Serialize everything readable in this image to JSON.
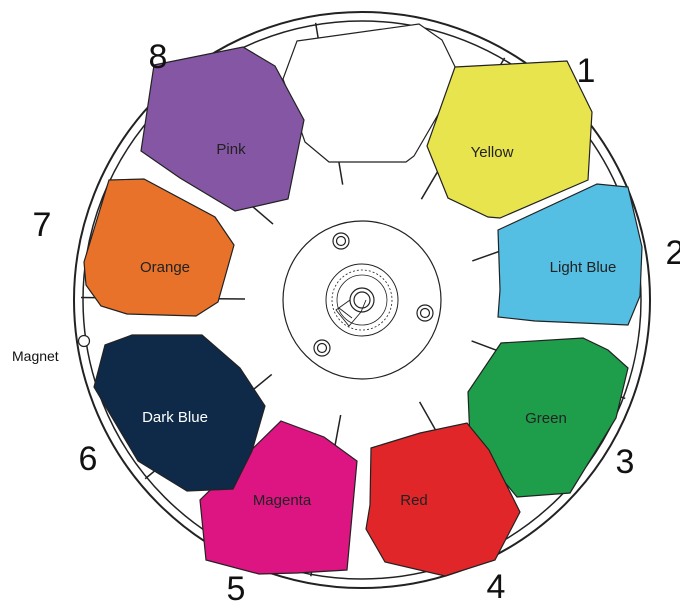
{
  "magnet": {
    "label": "Magnet"
  },
  "slots": [
    {
      "number": "1",
      "label": "Yellow",
      "color": "#E8E44E",
      "text_color": "#222222"
    },
    {
      "number": "2",
      "label": "Light Blue",
      "color": "#54BEE3",
      "text_color": "#222222"
    },
    {
      "number": "3",
      "label": "Green",
      "color": "#1E9E4B",
      "text_color": "#222222"
    },
    {
      "number": "4",
      "label": "Red",
      "color": "#E12629",
      "text_color": "#222222"
    },
    {
      "number": "5",
      "label": "Magenta",
      "color": "#DC1583",
      "text_color": "#222222"
    },
    {
      "number": "6",
      "label": "Dark Blue",
      "color": "#0E2A48",
      "text_color": "#ffffff"
    },
    {
      "number": "7",
      "label": "Orange",
      "color": "#E8722A",
      "text_color": "#222222"
    },
    {
      "number": "8",
      "label": "Pink",
      "color": "#8556A3",
      "text_color": "#222222"
    },
    {
      "number": "",
      "label": "",
      "color": "#ffffff",
      "text_color": "#222222"
    }
  ]
}
